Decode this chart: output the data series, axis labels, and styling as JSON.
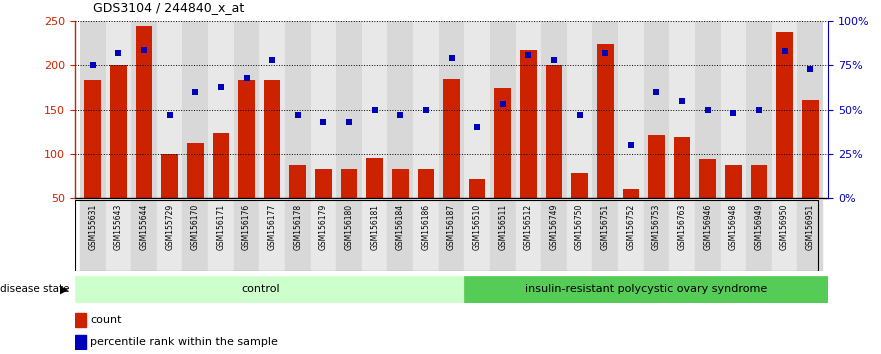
{
  "title": "GDS3104 / 244840_x_at",
  "samples": [
    "GSM155631",
    "GSM155643",
    "GSM155644",
    "GSM155729",
    "GSM156170",
    "GSM156171",
    "GSM156176",
    "GSM156177",
    "GSM156178",
    "GSM156179",
    "GSM156180",
    "GSM156181",
    "GSM156184",
    "GSM156186",
    "GSM156187",
    "GSM156510",
    "GSM156511",
    "GSM156512",
    "GSM156749",
    "GSM156750",
    "GSM156751",
    "GSM156752",
    "GSM156753",
    "GSM156763",
    "GSM156946",
    "GSM156948",
    "GSM156949",
    "GSM156950",
    "GSM156951"
  ],
  "counts": [
    184,
    200,
    245,
    100,
    112,
    124,
    184,
    184,
    88,
    83,
    83,
    95,
    83,
    83,
    185,
    72,
    175,
    218,
    200,
    79,
    224,
    61,
    121,
    119,
    94,
    87,
    88,
    238,
    161
  ],
  "percentiles_pct": [
    75,
    82,
    84,
    47,
    60,
    63,
    68,
    78,
    47,
    43,
    43,
    50,
    47,
    50,
    79,
    40,
    53,
    81,
    78,
    47,
    82,
    30,
    60,
    55,
    50,
    48,
    50,
    83,
    73
  ],
  "control_count": 15,
  "bar_color": "#cc2200",
  "dot_color": "#0000bb",
  "control_color": "#ccffcc",
  "disease_color": "#55cc55",
  "control_label": "control",
  "disease_label": "insulin-resistant polycystic ovary syndrome",
  "ylim_left": [
    50,
    250
  ],
  "ylim_right": [
    0,
    100
  ],
  "yticks_left": [
    50,
    100,
    150,
    200,
    250
  ],
  "yticks_right": [
    0,
    25,
    50,
    75,
    100
  ],
  "ytick_labels_right": [
    "0%",
    "25%",
    "50%",
    "75%",
    "100%"
  ]
}
